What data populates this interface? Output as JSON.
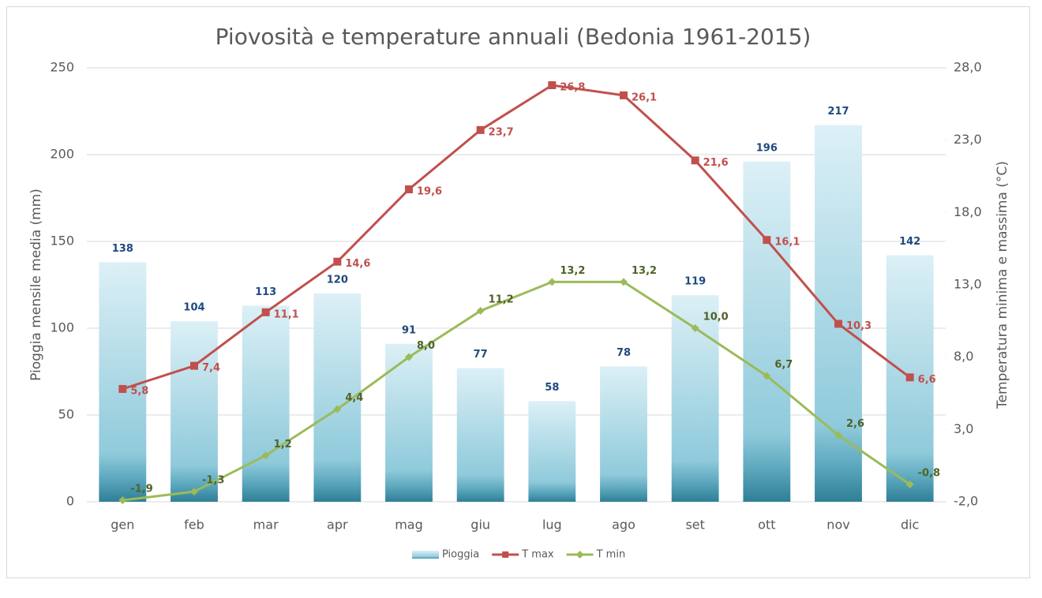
{
  "chart_data": {
    "type": "bar",
    "title": "Piovosità e temperature annuali (Bedonia 1961-2015)",
    "y_label": "Pioggia mensile media (mm)",
    "y2_label": "Temperatura minima e massima (°C)",
    "categories": [
      "gen",
      "feb",
      "mar",
      "apr",
      "mag",
      "giu",
      "lug",
      "ago",
      "set",
      "ott",
      "nov",
      "dic"
    ],
    "ylim": [
      0,
      250
    ],
    "yticks": [
      0,
      50,
      100,
      150,
      200,
      250
    ],
    "y2lim": [
      -2,
      28
    ],
    "y2ticks": [
      {
        "value": -2,
        "label": "-2,0"
      },
      {
        "value": 3,
        "label": "3,0"
      },
      {
        "value": 8,
        "label": "8,0"
      },
      {
        "value": 13,
        "label": "13,0"
      },
      {
        "value": 18,
        "label": "18,0"
      },
      {
        "value": 23,
        "label": "23,0"
      },
      {
        "value": 28,
        "label": "28,0"
      }
    ],
    "grid": true,
    "legend": "bottom",
    "series": [
      {
        "name": "Pioggia",
        "type": "bar",
        "color": "#8fcadb",
        "label_color": "#1f497d",
        "values": [
          138,
          104,
          113,
          120,
          91,
          77,
          58,
          78,
          119,
          196,
          217,
          142
        ]
      },
      {
        "name": "T max",
        "type": "line",
        "axis": "y2",
        "marker": "square",
        "color": "#c0504d",
        "label_color": "#c0504d",
        "values": [
          5.8,
          7.4,
          11.1,
          14.6,
          19.6,
          23.7,
          26.8,
          26.1,
          21.6,
          16.1,
          10.3,
          6.6
        ],
        "value_labels": [
          "5,8",
          "7,4",
          "11,1",
          "14,6",
          "19,6",
          "23,7",
          "26,8",
          "26,1",
          "21,6",
          "16,1",
          "10,3",
          "6,6"
        ]
      },
      {
        "name": "T min",
        "type": "line",
        "axis": "y2",
        "marker": "diamond",
        "color": "#9bbb59",
        "label_color": "#4f6228",
        "values": [
          -1.9,
          -1.3,
          1.2,
          4.4,
          8.0,
          11.2,
          13.2,
          13.2,
          10.0,
          6.7,
          2.6,
          -0.8
        ],
        "value_labels": [
          "-1,9",
          "-1,3",
          "1,2",
          "4,4",
          "8,0",
          "11,2",
          "13,2",
          "13,2",
          "10,0",
          "6,7",
          "2,6",
          "-0,8"
        ]
      }
    ]
  }
}
